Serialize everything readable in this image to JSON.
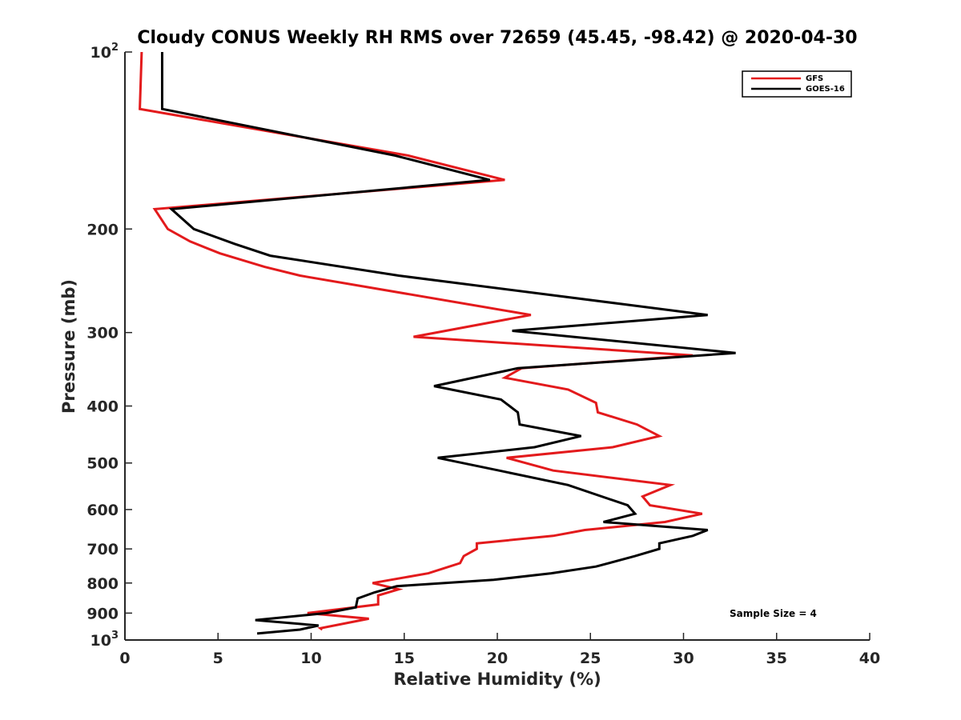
{
  "chart_data": {
    "type": "line",
    "title": "Cloudy CONUS Weekly RH RMS over 72659 (45.45, -98.42) @ 2020-04-30",
    "xlabel": "Relative Humidity (%)",
    "ylabel": "Pressure (mb)",
    "xlim": [
      0,
      40
    ],
    "ylim": [
      100,
      1000
    ],
    "y_scale": "log",
    "y_reversed": true,
    "grid": false,
    "legend_position": "top-right",
    "x_ticks": [
      0,
      5,
      10,
      15,
      20,
      25,
      30,
      35,
      40
    ],
    "x_tick_labels": [
      "0",
      "5",
      "10",
      "15",
      "20",
      "25",
      "30",
      "35",
      "40"
    ],
    "y_ticks": [
      {
        "value": 100,
        "base": "10",
        "exp": "2"
      },
      {
        "value": 200,
        "label": "200"
      },
      {
        "value": 300,
        "label": "300"
      },
      {
        "value": 400,
        "label": "400"
      },
      {
        "value": 500,
        "label": "500"
      },
      {
        "value": 600,
        "label": "600"
      },
      {
        "value": 700,
        "label": "700"
      },
      {
        "value": 800,
        "label": "800"
      },
      {
        "value": 900,
        "label": "900"
      },
      {
        "value": 1000,
        "base": "10",
        "exp": "3"
      }
    ],
    "series": [
      {
        "name": "GFS",
        "color": "#e31a1c",
        "points": [
          [
            0.9,
            100
          ],
          [
            0.8,
            125
          ],
          [
            15.2,
            150
          ],
          [
            20.4,
            165
          ],
          [
            1.6,
            185
          ],
          [
            2.3,
            200
          ],
          [
            3.5,
            210
          ],
          [
            5.1,
            220
          ],
          [
            7.5,
            232
          ],
          [
            9.4,
            240
          ],
          [
            21.8,
            280
          ],
          [
            15.5,
            305
          ],
          [
            30.5,
            328
          ],
          [
            21.3,
            345
          ],
          [
            20.4,
            358
          ],
          [
            23.8,
            375
          ],
          [
            25.3,
            395
          ],
          [
            25.4,
            410
          ],
          [
            27.5,
            430
          ],
          [
            28.7,
            450
          ],
          [
            26.2,
            470
          ],
          [
            20.5,
            490
          ],
          [
            23.0,
            515
          ],
          [
            29.3,
            545
          ],
          [
            27.8,
            570
          ],
          [
            28.2,
            590
          ],
          [
            31.0,
            610
          ],
          [
            29.0,
            630
          ],
          [
            24.7,
            650
          ],
          [
            23.0,
            665
          ],
          [
            18.9,
            685
          ],
          [
            18.9,
            700
          ],
          [
            18.2,
            720
          ],
          [
            18.0,
            740
          ],
          [
            16.3,
            770
          ],
          [
            13.3,
            800
          ],
          [
            14.7,
            820
          ],
          [
            13.6,
            840
          ],
          [
            13.6,
            870
          ],
          [
            9.8,
            900
          ],
          [
            13.1,
            920
          ],
          [
            10.5,
            955
          ],
          [
            10.6,
            960
          ]
        ]
      },
      {
        "name": "GOES-16",
        "color": "#000000",
        "points": [
          [
            2.0,
            100
          ],
          [
            2.0,
            125
          ],
          [
            14.5,
            150
          ],
          [
            19.6,
            165
          ],
          [
            2.5,
            185
          ],
          [
            3.7,
            200
          ],
          [
            5.9,
            212
          ],
          [
            7.8,
            222
          ],
          [
            14.7,
            240
          ],
          [
            31.3,
            280
          ],
          [
            20.8,
            298
          ],
          [
            32.8,
            325
          ],
          [
            21.1,
            345
          ],
          [
            16.6,
            370
          ],
          [
            20.2,
            390
          ],
          [
            21.1,
            410
          ],
          [
            21.2,
            430
          ],
          [
            24.5,
            450
          ],
          [
            22.0,
            470
          ],
          [
            16.8,
            490
          ],
          [
            20.1,
            515
          ],
          [
            23.8,
            545
          ],
          [
            27.0,
            590
          ],
          [
            27.4,
            610
          ],
          [
            25.7,
            630
          ],
          [
            31.3,
            650
          ],
          [
            30.5,
            665
          ],
          [
            28.7,
            685
          ],
          [
            28.7,
            700
          ],
          [
            27.4,
            720
          ],
          [
            25.3,
            750
          ],
          [
            22.9,
            770
          ],
          [
            19.8,
            790
          ],
          [
            14.6,
            810
          ],
          [
            13.4,
            830
          ],
          [
            12.5,
            850
          ],
          [
            12.4,
            880
          ],
          [
            10.8,
            900
          ],
          [
            7.0,
            925
          ],
          [
            10.4,
            945
          ],
          [
            9.4,
            960
          ],
          [
            7.1,
            975
          ]
        ]
      }
    ],
    "annotations": [
      "Sample Size = 4"
    ]
  }
}
